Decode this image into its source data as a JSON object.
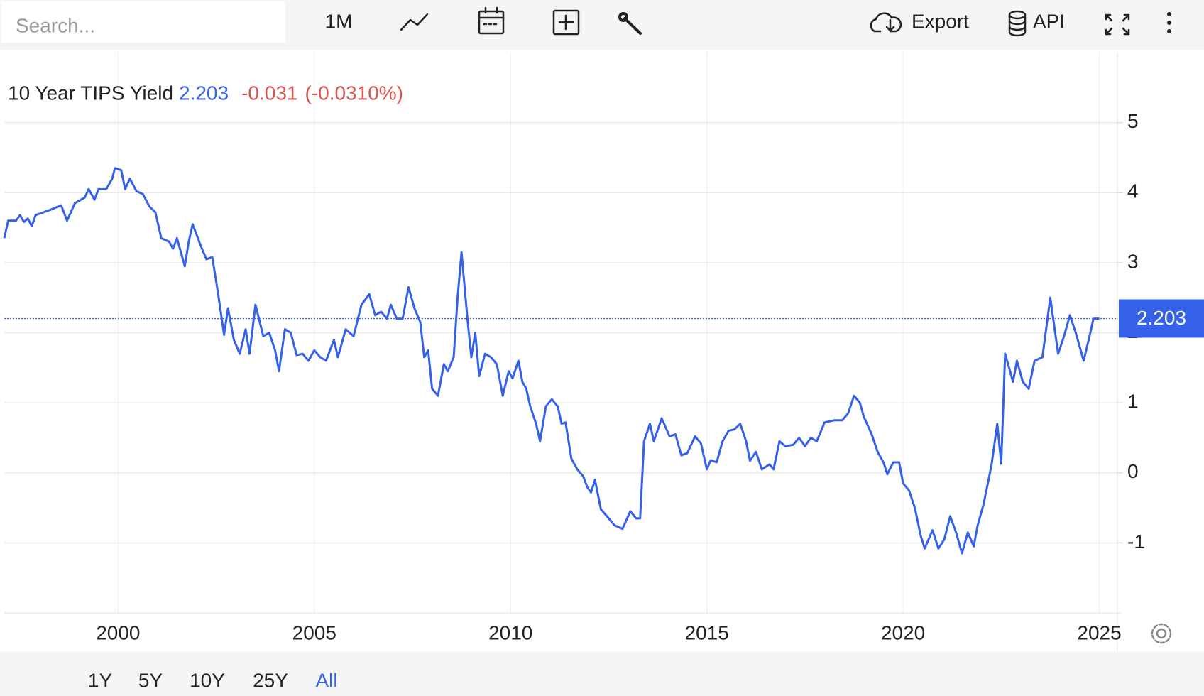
{
  "toolbar": {
    "search_placeholder": "Search...",
    "interval": "1M",
    "export": "Export",
    "api": "API"
  },
  "ranges": [
    "1Y",
    "5Y",
    "10Y",
    "25Y",
    "All"
  ],
  "chart_data": {
    "type": "line",
    "last_value": 2.203,
    "change": -0.031,
    "change_percent_label": "(-0.0310%)",
    "xlim": [
      1997.1,
      2025.46
    ],
    "xticks": [
      2000,
      2005,
      2010,
      2015,
      2020,
      2025
    ],
    "ylim": [
      -2,
      6
    ],
    "yticks": [
      -1,
      0,
      1,
      2,
      3,
      4,
      5
    ],
    "grid": true,
    "series": [
      {
        "name": "10 Year TIPS Yield",
        "color": "#3461e8",
        "x": [
          1997.1,
          1997.2,
          1997.4,
          1997.5,
          1997.6,
          1997.7,
          1997.8,
          1997.9,
          1998.1,
          1998.3,
          1998.55,
          1998.7,
          1998.9,
          1999.15,
          1999.25,
          1999.4,
          1999.5,
          1999.7,
          1999.85,
          1999.92,
          2000.08,
          2000.18,
          2000.3,
          2000.47,
          2000.63,
          2000.8,
          2000.95,
          2001.1,
          2001.3,
          2001.4,
          2001.5,
          2001.7,
          2001.8,
          2001.9,
          2002.0,
          2002.1,
          2002.25,
          2002.4,
          2002.55,
          2002.7,
          2002.8,
          2002.95,
          2003.1,
          2003.25,
          2003.35,
          2003.5,
          2003.7,
          2003.85,
          2004.0,
          2004.1,
          2004.25,
          2004.4,
          2004.55,
          2004.7,
          2004.85,
          2005.0,
          2005.15,
          2005.3,
          2005.5,
          2005.6,
          2005.8,
          2006.0,
          2006.2,
          2006.4,
          2006.55,
          2006.7,
          2006.85,
          2006.95,
          2007.1,
          2007.25,
          2007.4,
          2007.55,
          2007.7,
          2007.8,
          2007.9,
          2008.0,
          2008.15,
          2008.3,
          2008.4,
          2008.55,
          2008.65,
          2008.75,
          2008.9,
          2009.0,
          2009.1,
          2009.2,
          2009.35,
          2009.5,
          2009.65,
          2009.8,
          2009.95,
          2010.05,
          2010.2,
          2010.3,
          2010.4,
          2010.5,
          2010.65,
          2010.75,
          2010.9,
          2011.05,
          2011.2,
          2011.3,
          2011.4,
          2011.55,
          2011.7,
          2011.85,
          2011.95,
          2012.05,
          2012.15,
          2012.3,
          2012.5,
          2012.65,
          2012.85,
          2013.05,
          2013.2,
          2013.3,
          2013.4,
          2013.55,
          2013.65,
          2013.85,
          2014.05,
          2014.2,
          2014.35,
          2014.5,
          2014.7,
          2014.85,
          2015.0,
          2015.1,
          2015.25,
          2015.4,
          2015.55,
          2015.7,
          2015.85,
          2016.0,
          2016.1,
          2016.25,
          2016.4,
          2016.6,
          2016.7,
          2016.85,
          2017.0,
          2017.2,
          2017.35,
          2017.5,
          2017.65,
          2017.8,
          2018.0,
          2018.25,
          2018.45,
          2018.6,
          2018.75,
          2018.9,
          2019.0,
          2019.2,
          2019.35,
          2019.5,
          2019.6,
          2019.75,
          2019.9,
          2020.0,
          2020.15,
          2020.3,
          2020.45,
          2020.55,
          2020.75,
          2020.9,
          2021.05,
          2021.2,
          2021.35,
          2021.5,
          2021.65,
          2021.8,
          2021.9,
          2022.05,
          2022.25,
          2022.4,
          2022.5,
          2022.6,
          2022.8,
          2022.9,
          2023.05,
          2023.2,
          2023.35,
          2023.55,
          2023.75,
          2023.95,
          2024.1,
          2024.25,
          2024.4,
          2024.5,
          2024.6,
          2024.75,
          2024.85,
          2025.0
        ],
        "values": [
          3.35,
          3.6,
          3.6,
          3.68,
          3.58,
          3.63,
          3.52,
          3.68,
          3.72,
          3.76,
          3.82,
          3.6,
          3.85,
          3.93,
          4.05,
          3.9,
          4.05,
          4.05,
          4.2,
          4.35,
          4.32,
          4.05,
          4.2,
          4.02,
          3.98,
          3.8,
          3.72,
          3.35,
          3.3,
          3.2,
          3.35,
          2.95,
          3.3,
          3.55,
          3.4,
          3.25,
          3.05,
          3.08,
          2.55,
          1.97,
          2.35,
          1.9,
          1.7,
          2.05,
          1.7,
          2.4,
          1.95,
          2.0,
          1.75,
          1.45,
          2.05,
          2.0,
          1.68,
          1.7,
          1.6,
          1.75,
          1.65,
          1.6,
          1.9,
          1.65,
          2.05,
          1.95,
          2.4,
          2.55,
          2.25,
          2.3,
          2.2,
          2.4,
          2.2,
          2.2,
          2.65,
          2.35,
          2.15,
          1.65,
          1.75,
          1.2,
          1.1,
          1.55,
          1.45,
          1.65,
          2.5,
          3.15,
          2.2,
          1.65,
          2.0,
          1.38,
          1.7,
          1.65,
          1.55,
          1.1,
          1.45,
          1.35,
          1.6,
          1.3,
          1.2,
          0.95,
          0.7,
          0.45,
          0.95,
          1.05,
          0.95,
          0.7,
          0.72,
          0.2,
          0.05,
          -0.05,
          -0.2,
          -0.28,
          -0.1,
          -0.52,
          -0.65,
          -0.75,
          -0.8,
          -0.55,
          -0.65,
          -0.65,
          0.45,
          0.7,
          0.45,
          0.78,
          0.52,
          0.55,
          0.25,
          0.28,
          0.52,
          0.42,
          0.05,
          0.18,
          0.15,
          0.45,
          0.6,
          0.62,
          0.7,
          0.45,
          0.17,
          0.3,
          0.05,
          0.12,
          0.05,
          0.45,
          0.38,
          0.4,
          0.5,
          0.38,
          0.5,
          0.45,
          0.72,
          0.75,
          0.75,
          0.85,
          1.1,
          1.0,
          0.8,
          0.55,
          0.3,
          0.15,
          -0.02,
          0.15,
          0.15,
          -0.15,
          -0.25,
          -0.5,
          -0.9,
          -1.08,
          -0.82,
          -1.08,
          -0.95,
          -0.62,
          -0.85,
          -1.15,
          -0.85,
          -1.05,
          -0.75,
          -0.45,
          0.1,
          0.7,
          0.13,
          1.7,
          1.3,
          1.6,
          1.3,
          1.2,
          1.6,
          1.65,
          2.5,
          1.7,
          1.95,
          2.25,
          2.0,
          1.8,
          1.6,
          1.95,
          2.2,
          2.203
        ]
      }
    ]
  }
}
